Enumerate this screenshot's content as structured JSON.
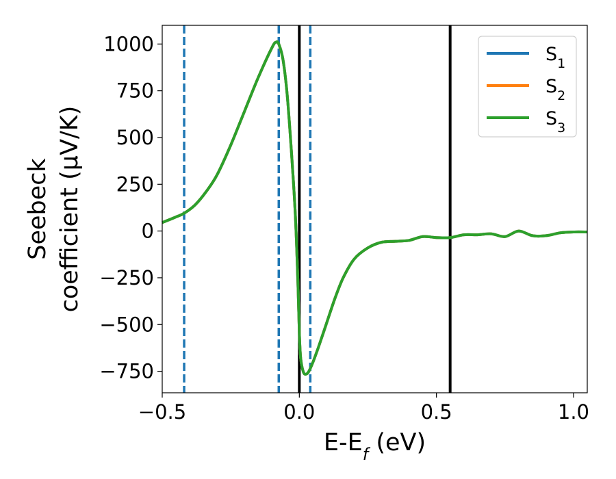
{
  "chart_data": {
    "type": "line",
    "xlabel": "E-E_f (eV)",
    "ylabel_line1": "Seebeck",
    "ylabel_line2": "coefficient  (μV/K)",
    "xlim": [
      -0.5,
      1.05
    ],
    "ylim": [
      -865,
      1100
    ],
    "xticks": [
      -0.5,
      0.0,
      0.5,
      1.0
    ],
    "xtick_labels": [
      "−0.5",
      "0.0",
      "0.5",
      "1.0"
    ],
    "yticks": [
      1000,
      750,
      500,
      250,
      0,
      -250,
      -500,
      -750
    ],
    "ytick_labels": [
      "1000",
      "750",
      "500",
      "250",
      "0",
      "−250",
      "−500",
      "−750"
    ],
    "grid": false,
    "legend_position": "top-right",
    "series": [
      {
        "name": "S1",
        "color": "#1f77b4",
        "x": [
          -0.5,
          -0.45,
          -0.42,
          -0.38,
          -0.34,
          -0.3,
          -0.25,
          -0.2,
          -0.15,
          -0.1,
          -0.085,
          -0.075,
          -0.06,
          -0.045,
          -0.03,
          -0.015,
          -0.005,
          0.0,
          0.005,
          0.015,
          0.025,
          0.035,
          0.05,
          0.07,
          0.1,
          0.13,
          0.16,
          0.2,
          0.25,
          0.3,
          0.35,
          0.4,
          0.45,
          0.5,
          0.55,
          0.6,
          0.65,
          0.7,
          0.75,
          0.8,
          0.85,
          0.9,
          0.95,
          1.0,
          1.05
        ],
        "y": [
          45,
          75,
          95,
          140,
          210,
          300,
          460,
          640,
          820,
          980,
          1010,
          1000,
          920,
          740,
          450,
          100,
          -280,
          -540,
          -680,
          -755,
          -765,
          -750,
          -700,
          -620,
          -490,
          -360,
          -250,
          -150,
          -90,
          -60,
          -55,
          -50,
          -30,
          -35,
          -35,
          -20,
          -20,
          -15,
          -30,
          0,
          -25,
          -25,
          -10,
          -5,
          -5
        ]
      },
      {
        "name": "S2",
        "color": "#ff7f0e",
        "x": [
          -0.5,
          -0.45,
          -0.42,
          -0.38,
          -0.34,
          -0.3,
          -0.25,
          -0.2,
          -0.15,
          -0.1,
          -0.085,
          -0.075,
          -0.06,
          -0.045,
          -0.03,
          -0.015,
          -0.005,
          0.0,
          0.005,
          0.015,
          0.025,
          0.035,
          0.05,
          0.07,
          0.1,
          0.13,
          0.16,
          0.2,
          0.25,
          0.3,
          0.35,
          0.4,
          0.45,
          0.5,
          0.55,
          0.6,
          0.65,
          0.7,
          0.75,
          0.8,
          0.85,
          0.9,
          0.95,
          1.0,
          1.05
        ],
        "y": [
          45,
          75,
          95,
          140,
          210,
          300,
          460,
          640,
          820,
          980,
          1010,
          1000,
          920,
          740,
          450,
          100,
          -280,
          -540,
          -680,
          -755,
          -765,
          -750,
          -700,
          -620,
          -490,
          -360,
          -250,
          -150,
          -90,
          -60,
          -55,
          -50,
          -30,
          -35,
          -35,
          -20,
          -20,
          -15,
          -30,
          0,
          -25,
          -25,
          -10,
          -5,
          -5
        ]
      },
      {
        "name": "S3",
        "color": "#2ca02c",
        "x": [
          -0.5,
          -0.45,
          -0.42,
          -0.38,
          -0.34,
          -0.3,
          -0.25,
          -0.2,
          -0.15,
          -0.1,
          -0.085,
          -0.075,
          -0.06,
          -0.045,
          -0.03,
          -0.015,
          -0.005,
          0.0,
          0.005,
          0.015,
          0.025,
          0.035,
          0.05,
          0.07,
          0.1,
          0.13,
          0.16,
          0.2,
          0.25,
          0.3,
          0.35,
          0.4,
          0.45,
          0.5,
          0.55,
          0.6,
          0.65,
          0.7,
          0.75,
          0.8,
          0.85,
          0.9,
          0.95,
          1.0,
          1.05
        ],
        "y": [
          45,
          75,
          95,
          140,
          210,
          300,
          460,
          640,
          820,
          980,
          1010,
          1000,
          920,
          740,
          450,
          100,
          -280,
          -540,
          -680,
          -755,
          -765,
          -750,
          -700,
          -620,
          -490,
          -360,
          -250,
          -150,
          -90,
          -60,
          -55,
          -50,
          -30,
          -35,
          -35,
          -20,
          -20,
          -15,
          -30,
          0,
          -25,
          -25,
          -10,
          -5,
          -5
        ]
      }
    ],
    "vlines": [
      {
        "x": -0.42,
        "style": "dashed",
        "color": "#1f77b4"
      },
      {
        "x": -0.075,
        "style": "dashed",
        "color": "#1f77b4"
      },
      {
        "x": 0.04,
        "style": "dashed",
        "color": "#1f77b4"
      },
      {
        "x": 0.0,
        "style": "solid",
        "color": "#000000"
      },
      {
        "x": 0.55,
        "style": "solid",
        "color": "#000000"
      }
    ]
  }
}
